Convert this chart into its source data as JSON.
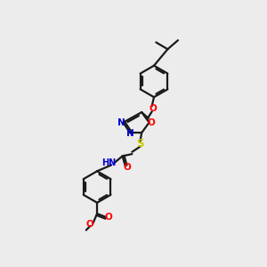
{
  "bg": "#ececec",
  "bond": "#1a1a1a",
  "O": "#ff0000",
  "N": "#0000cc",
  "S": "#cccc00",
  "lw": 1.6,
  "lw2": 1.0,
  "fs": 7.5,
  "fs_small": 6.5
}
